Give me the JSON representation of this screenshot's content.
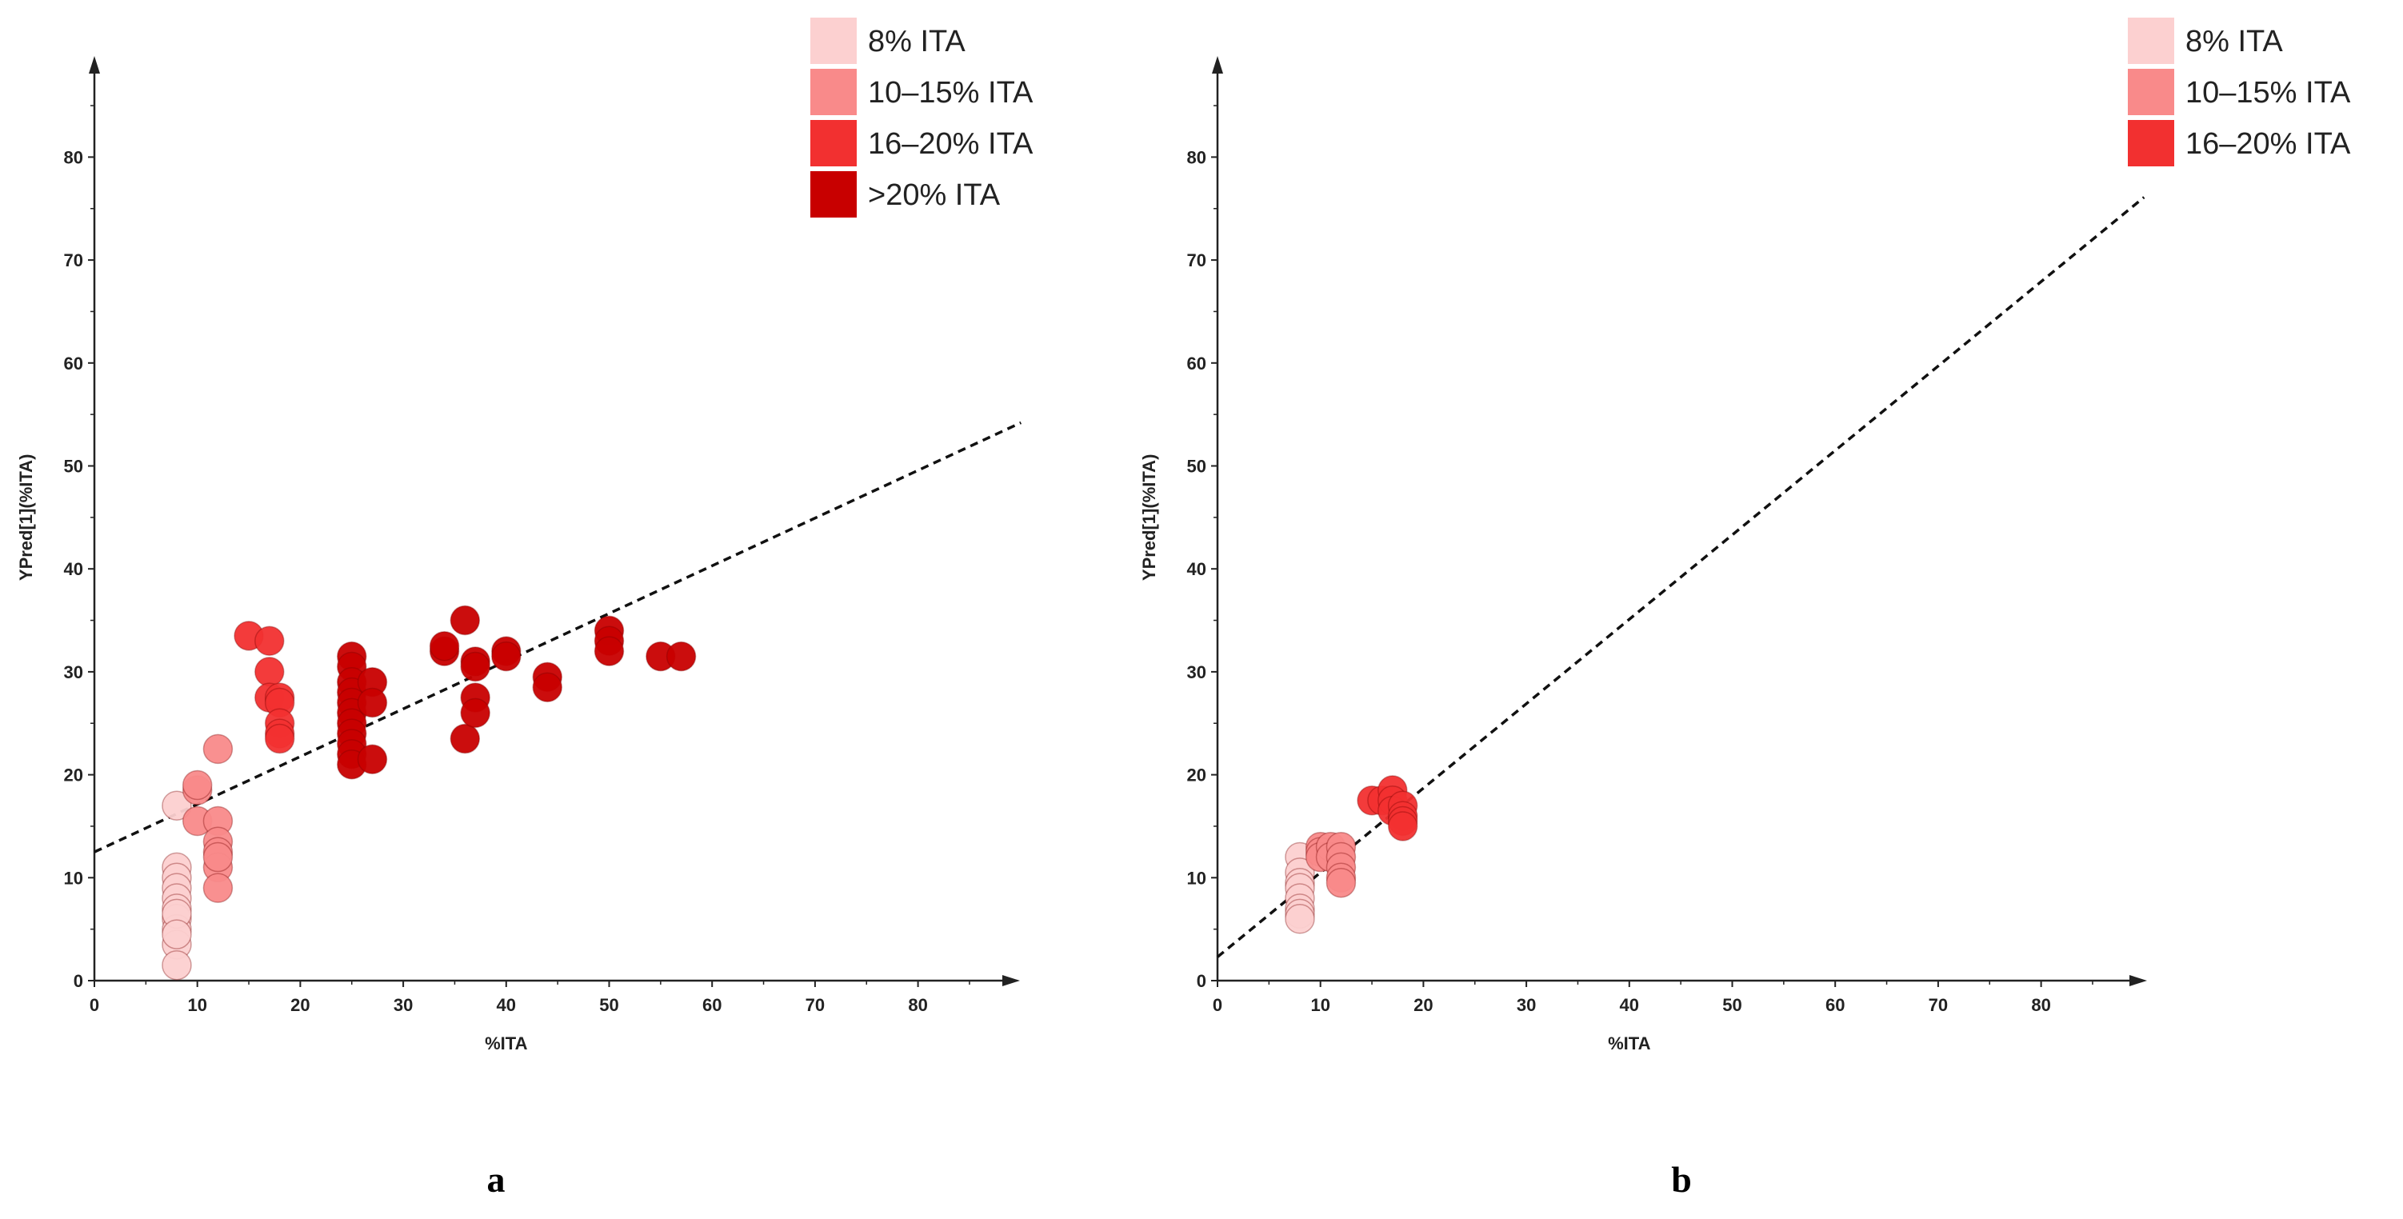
{
  "chart_data": [
    {
      "type": "scatter",
      "panel_label": "a",
      "xlabel": "%ITA",
      "ylabel": "YPred[1](%ITA)",
      "xlim": [
        0,
        90
      ],
      "ylim": [
        0,
        90
      ],
      "xticks": [
        0,
        10,
        20,
        30,
        40,
        50,
        60,
        70,
        80
      ],
      "yticks": [
        0,
        10,
        20,
        30,
        40,
        50,
        60,
        70,
        80
      ],
      "legend": [
        {
          "label": "8% ITA",
          "color": "#FCD0D0"
        },
        {
          "label": "10–15% ITA",
          "color": "#F98A8A"
        },
        {
          "label": "16–20% ITA",
          "color": "#F23030"
        },
        {
          "label": ">20% ITA",
          "color": "#C80000"
        }
      ],
      "fit_line": {
        "x": [
          0,
          90
        ],
        "y": [
          12.5,
          54.2
        ]
      },
      "series": [
        {
          "name": "8% ITA",
          "color": "#FCD0D0",
          "points": [
            [
              8,
              17
            ],
            [
              8,
              11
            ],
            [
              8,
              10
            ],
            [
              8,
              9
            ],
            [
              8,
              8
            ],
            [
              8,
              7
            ],
            [
              8,
              6
            ],
            [
              8,
              5
            ],
            [
              8,
              3.5
            ],
            [
              8,
              1.5
            ],
            [
              8,
              6.5
            ],
            [
              8,
              4.5
            ]
          ]
        },
        {
          "name": "10–15% ITA",
          "color": "#F98A8A",
          "points": [
            [
              10,
              18.5
            ],
            [
              10,
              19
            ],
            [
              10,
              15.5
            ],
            [
              12,
              22.5
            ],
            [
              12,
              15.5
            ],
            [
              12,
              13.5
            ],
            [
              12,
              12.5
            ],
            [
              12,
              11
            ],
            [
              12,
              9
            ],
            [
              12,
              12
            ]
          ]
        },
        {
          "name": "16–20% ITA",
          "color": "#F23030",
          "points": [
            [
              15,
              33.5
            ],
            [
              17,
              33
            ],
            [
              17,
              30
            ],
            [
              17,
              27.5
            ],
            [
              18,
              27.5
            ],
            [
              18,
              27
            ],
            [
              18,
              25
            ],
            [
              18,
              24
            ],
            [
              18,
              23.5
            ]
          ]
        },
        {
          "name": ">20% ITA",
          "color": "#C80000",
          "points": [
            [
              25,
              31.5
            ],
            [
              25,
              30.5
            ],
            [
              25,
              29
            ],
            [
              25,
              28
            ],
            [
              25,
              27
            ],
            [
              25,
              26
            ],
            [
              25,
              25
            ],
            [
              25,
              24
            ],
            [
              25,
              23
            ],
            [
              25,
              22
            ],
            [
              25,
              21
            ],
            [
              27,
              29
            ],
            [
              27,
              27
            ],
            [
              27,
              21.5
            ],
            [
              34,
              32
            ],
            [
              34,
              32.5
            ],
            [
              36,
              35
            ],
            [
              36,
              23.5
            ],
            [
              37,
              31
            ],
            [
              37,
              30.5
            ],
            [
              37,
              27.5
            ],
            [
              37,
              26
            ],
            [
              40,
              32
            ],
            [
              40,
              31.5
            ],
            [
              44,
              29.5
            ],
            [
              44,
              28.5
            ],
            [
              50,
              34
            ],
            [
              50,
              33
            ],
            [
              50,
              32
            ],
            [
              55,
              31.5
            ],
            [
              57,
              31.5
            ]
          ]
        }
      ]
    },
    {
      "type": "scatter",
      "panel_label": "b",
      "xlabel": "%ITA",
      "ylabel": "YPred[1](%ITA)",
      "xlim": [
        0,
        90
      ],
      "ylim": [
        0,
        90
      ],
      "xticks": [
        0,
        10,
        20,
        30,
        40,
        50,
        60,
        70,
        80
      ],
      "yticks": [
        0,
        10,
        20,
        30,
        40,
        50,
        60,
        70,
        80
      ],
      "legend": [
        {
          "label": "8% ITA",
          "color": "#FCD0D0"
        },
        {
          "label": "10–15% ITA",
          "color": "#F98A8A"
        },
        {
          "label": "16–20% ITA",
          "color": "#F23030"
        }
      ],
      "fit_line": {
        "x": [
          0,
          90
        ],
        "y": [
          2.3,
          76.1
        ]
      },
      "series": [
        {
          "name": "8% ITA",
          "color": "#FCD0D0",
          "points": [
            [
              8,
              12
            ],
            [
              8,
              10.5
            ],
            [
              8,
              9.5
            ],
            [
              8,
              9
            ],
            [
              8,
              8
            ],
            [
              8,
              7
            ],
            [
              8,
              6.5
            ],
            [
              8,
              6
            ]
          ]
        },
        {
          "name": "10–15% ITA",
          "color": "#F98A8A",
          "points": [
            [
              10,
              13
            ],
            [
              10,
              12.5
            ],
            [
              10,
              12
            ],
            [
              11,
              13
            ],
            [
              11,
              12
            ],
            [
              12,
              13
            ],
            [
              12,
              12
            ],
            [
              12,
              11
            ],
            [
              12,
              10
            ],
            [
              12,
              9.5
            ]
          ]
        },
        {
          "name": "16–20% ITA",
          "color": "#F23030",
          "points": [
            [
              15,
              17.5
            ],
            [
              16,
              17.5
            ],
            [
              17,
              18.5
            ],
            [
              17,
              17.5
            ],
            [
              17,
              16.5
            ],
            [
              18,
              17
            ],
            [
              18,
              16
            ],
            [
              18,
              15.5
            ],
            [
              18,
              15
            ]
          ]
        }
      ]
    }
  ]
}
